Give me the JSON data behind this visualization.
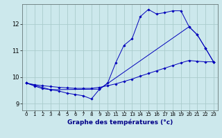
{
  "xlabel": "Graphe des températures (°c)",
  "background_color": "#cce8ec",
  "grid_color": "#aacccc",
  "line_color": "#0000bb",
  "xlim": [
    -0.5,
    23.5
  ],
  "ylim": [
    8.75,
    12.75
  ],
  "xticks": [
    0,
    1,
    2,
    3,
    4,
    5,
    6,
    7,
    8,
    9,
    10,
    11,
    12,
    13,
    14,
    15,
    16,
    17,
    18,
    19,
    20,
    21,
    22,
    23
  ],
  "yticks": [
    9,
    10,
    11,
    12
  ],
  "line1_x": [
    0,
    1,
    2,
    3,
    4,
    5,
    6,
    7,
    8,
    9,
    10,
    11,
    12,
    13,
    14,
    15,
    16,
    17,
    18,
    19,
    20,
    21,
    22,
    23
  ],
  "line1_y": [
    9.78,
    9.67,
    9.57,
    9.53,
    9.48,
    9.4,
    9.35,
    9.3,
    9.18,
    9.55,
    9.78,
    10.55,
    11.2,
    11.45,
    12.28,
    12.55,
    12.38,
    12.43,
    12.5,
    12.5,
    11.9,
    11.6,
    11.1,
    10.58
  ],
  "line2_x": [
    0,
    1,
    2,
    3,
    4,
    5,
    6,
    7,
    8,
    9,
    10,
    11,
    12,
    13,
    14,
    15,
    16,
    17,
    18,
    19,
    20,
    21,
    22,
    23
  ],
  "line2_y": [
    9.78,
    9.72,
    9.68,
    9.65,
    9.62,
    9.6,
    9.58,
    9.58,
    9.58,
    9.62,
    9.68,
    9.75,
    9.84,
    9.93,
    10.04,
    10.14,
    10.24,
    10.34,
    10.44,
    10.54,
    10.63,
    10.6,
    10.58,
    10.58
  ],
  "line3_x": [
    0,
    3,
    9,
    20,
    21,
    22,
    23
  ],
  "line3_y": [
    9.78,
    9.53,
    9.55,
    11.9,
    11.6,
    11.1,
    10.58
  ]
}
